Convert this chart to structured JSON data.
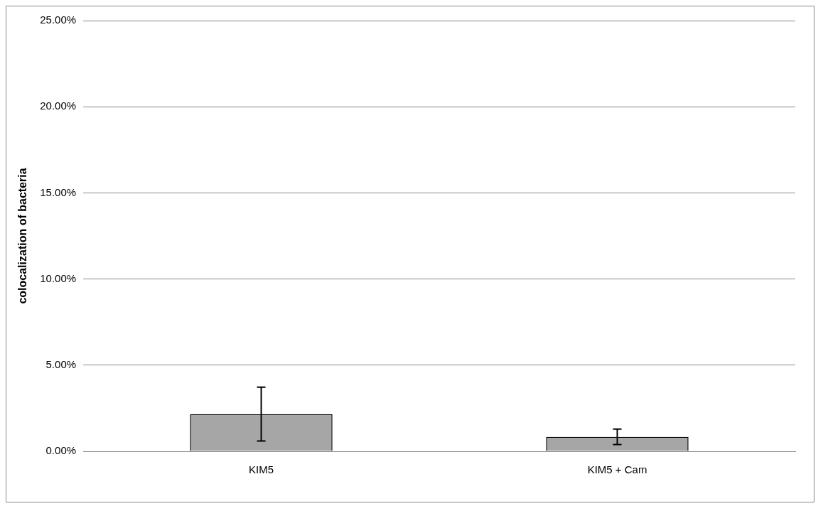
{
  "chart_data": {
    "type": "bar",
    "ylabel": "colocalization of bacteria",
    "categories": [
      "KIM5",
      "KIM5 + Cam"
    ],
    "values": [
      2.16,
      0.84
    ],
    "errors": [
      1.56,
      0.45
    ],
    "color": "#a6a6a6",
    "ylim": [
      0,
      25
    ],
    "yticks": [
      {
        "value": 0,
        "label": "0.00%"
      },
      {
        "value": 5,
        "label": "5.00%"
      },
      {
        "value": 10,
        "label": "10.00%"
      },
      {
        "value": 15,
        "label": "15.00%"
      },
      {
        "value": 20,
        "label": "20.00%"
      },
      {
        "value": 25,
        "label": "25.00%"
      }
    ],
    "grid": "y",
    "legend": false
  }
}
